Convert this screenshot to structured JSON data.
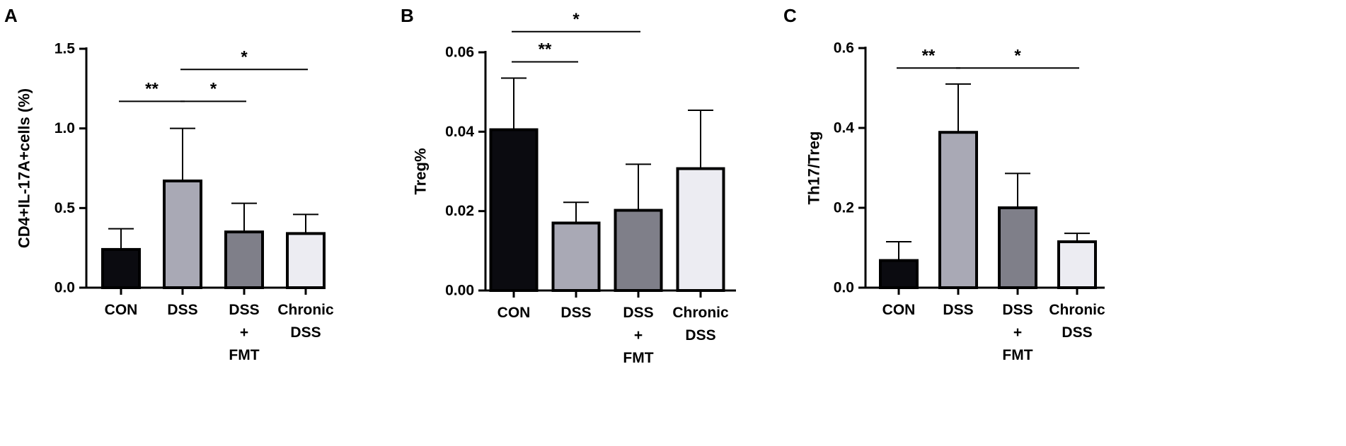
{
  "chart_data": [
    {
      "type": "bar",
      "panel": "A",
      "ylabel": "CD4+IL-17A+cells (%)",
      "ylim": [
        0,
        1.5
      ],
      "yticks": [
        "0.0",
        "0.5",
        "1.0",
        "1.5"
      ],
      "categories": [
        [
          "CON"
        ],
        [
          "DSS"
        ],
        [
          "DSS",
          "+",
          "FMT"
        ],
        [
          "Chronic",
          "DSS"
        ]
      ],
      "values": [
        0.24,
        0.67,
        0.35,
        0.34
      ],
      "errors": [
        0.13,
        0.33,
        0.18,
        0.12
      ],
      "colors": [
        "#0b0b10",
        "#a9a9b5",
        "#7f7f89",
        "#ececf2"
      ],
      "significance": [
        {
          "from": 0,
          "to": 1,
          "y": 1.17,
          "label": "**"
        },
        {
          "from": 1,
          "to": 2,
          "y": 1.17,
          "label": "*"
        },
        {
          "from": 1,
          "to": 3,
          "y": 1.37,
          "label": "*"
        }
      ]
    },
    {
      "type": "bar",
      "panel": "B",
      "ylabel": "Treg%",
      "ylim": [
        0,
        0.06
      ],
      "yticks": [
        "0.00",
        "0.02",
        "0.04",
        "0.06"
      ],
      "categories": [
        [
          "CON"
        ],
        [
          "DSS"
        ],
        [
          "DSS",
          "+",
          "FMT"
        ],
        [
          "Chronic",
          "DSS"
        ]
      ],
      "values": [
        0.0405,
        0.017,
        0.0202,
        0.0307
      ],
      "errors": [
        0.013,
        0.0052,
        0.0116,
        0.0147
      ],
      "colors": [
        "#0b0b10",
        "#a9a9b5",
        "#7f7f89",
        "#ececf2"
      ],
      "significance": [
        {
          "from": 0,
          "to": 1,
          "y": 0.0576,
          "label": "**"
        },
        {
          "from": 0,
          "to": 2,
          "y": 0.0652,
          "label": "*"
        }
      ]
    },
    {
      "type": "bar",
      "panel": "C",
      "ylabel": "Th17/Treg",
      "ylim": [
        0,
        0.6
      ],
      "yticks": [
        "0.0",
        "0.2",
        "0.4",
        "0.6"
      ],
      "categories": [
        [
          "CON"
        ],
        [
          "DSS"
        ],
        [
          "DSS",
          "+",
          "FMT"
        ],
        [
          "Chronic",
          "DSS"
        ]
      ],
      "values": [
        0.068,
        0.389,
        0.2,
        0.115
      ],
      "errors": [
        0.047,
        0.121,
        0.086,
        0.021
      ],
      "colors": [
        "#0b0b10",
        "#a9a9b5",
        "#7f7f89",
        "#ececf2"
      ],
      "significance": [
        {
          "from": 0,
          "to": 1,
          "y": 0.55,
          "label": "**"
        },
        {
          "from": 1,
          "to": 3,
          "y": 0.55,
          "label": "*"
        }
      ]
    }
  ]
}
